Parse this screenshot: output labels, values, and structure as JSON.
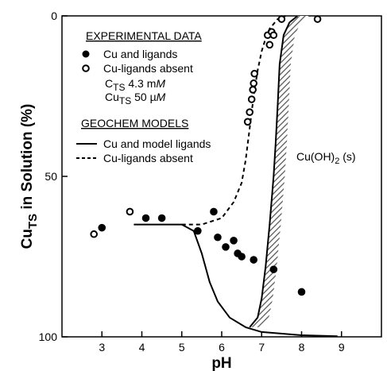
{
  "chart_data": {
    "type": "scatter",
    "xlabel": "pH",
    "ylabel_main": "Cu",
    "ylabel_sub": "TS",
    "ylabel_tail": " in Solution (%)",
    "xlim": [
      2.0,
      10.0
    ],
    "ylim": [
      0,
      100
    ],
    "y_inverted": true,
    "x_ticks": [
      "3",
      "4",
      "5",
      "6",
      "7",
      "8",
      "9"
    ],
    "x_tick_values": [
      3,
      4,
      5,
      6,
      7,
      8,
      9
    ],
    "y_ticks": [
      "0",
      "50",
      "100"
    ],
    "y_tick_values": [
      0,
      50,
      100
    ],
    "legend_experimental": {
      "heading": "EXPERIMENTAL DATA",
      "filled_label": "Cu and ligands",
      "open_label": "Cu-ligands absent",
      "note1_pre": "C",
      "note1_sub": "TS",
      "note1_post": " 4.3 m",
      "note1_unit": "M",
      "note2_pre": "Cu",
      "note2_sub": "TS",
      "note2_post": " 50 µ",
      "note2_unit": "M"
    },
    "legend_models": {
      "heading": "GEOCHEM MODELS",
      "solid_label": "Cu and model ligands",
      "dashed_label": "Cu-ligands absent"
    },
    "annotation": {
      "text_pre": "Cu(OH)",
      "text_sub": "2",
      "text_post": " (s)"
    },
    "series": [
      {
        "name": "Cu and ligands",
        "marker": "filled-circle",
        "points": [
          [
            3.0,
            66
          ],
          [
            4.1,
            63
          ],
          [
            4.5,
            63
          ],
          [
            5.4,
            67
          ],
          [
            5.8,
            61
          ],
          [
            5.9,
            69
          ],
          [
            6.1,
            72
          ],
          [
            6.3,
            70
          ],
          [
            6.4,
            74
          ],
          [
            6.5,
            75
          ],
          [
            6.8,
            76
          ],
          [
            7.3,
            79
          ],
          [
            8.0,
            86
          ]
        ]
      },
      {
        "name": "Cu-ligands absent",
        "marker": "open-circle",
        "points": [
          [
            2.8,
            68
          ],
          [
            3.7,
            61
          ],
          [
            6.65,
            33
          ],
          [
            6.7,
            30
          ],
          [
            6.75,
            26
          ],
          [
            6.78,
            23
          ],
          [
            6.8,
            21
          ],
          [
            6.82,
            18
          ],
          [
            7.15,
            6
          ],
          [
            7.2,
            9
          ],
          [
            7.25,
            5
          ],
          [
            7.3,
            6
          ],
          [
            7.5,
            1
          ],
          [
            8.4,
            1
          ]
        ]
      },
      {
        "name": "Cu and model ligands",
        "style": "solid",
        "points": [
          [
            3.8,
            65
          ],
          [
            4.5,
            65
          ],
          [
            5.0,
            65
          ],
          [
            5.3,
            67
          ],
          [
            5.5,
            74
          ],
          [
            5.7,
            83
          ],
          [
            5.9,
            89
          ],
          [
            6.2,
            94
          ],
          [
            6.6,
            97
          ],
          [
            7.0,
            98.5
          ],
          [
            8.0,
            99.5
          ],
          [
            8.9,
            99.8
          ]
        ]
      },
      {
        "name": "Cu-ligands absent (model)",
        "style": "dashed",
        "points": [
          [
            5.0,
            65
          ],
          [
            5.5,
            65
          ],
          [
            6.0,
            63
          ],
          [
            6.3,
            58
          ],
          [
            6.5,
            52
          ],
          [
            6.6,
            45
          ],
          [
            6.7,
            35
          ],
          [
            6.8,
            25
          ],
          [
            6.9,
            17
          ],
          [
            7.0,
            11
          ],
          [
            7.1,
            7
          ],
          [
            7.2,
            4
          ],
          [
            7.4,
            1
          ],
          [
            7.6,
            0
          ]
        ]
      },
      {
        "name": "Cu(OH)2 (s) boundary",
        "style": "solid",
        "points": [
          [
            6.7,
            97
          ],
          [
            6.9,
            94
          ],
          [
            7.0,
            88
          ],
          [
            7.1,
            78
          ],
          [
            7.2,
            65
          ],
          [
            7.3,
            50
          ],
          [
            7.35,
            40
          ],
          [
            7.4,
            28
          ],
          [
            7.45,
            15
          ],
          [
            7.55,
            6
          ],
          [
            7.7,
            2
          ],
          [
            7.9,
            0
          ]
        ]
      }
    ]
  }
}
